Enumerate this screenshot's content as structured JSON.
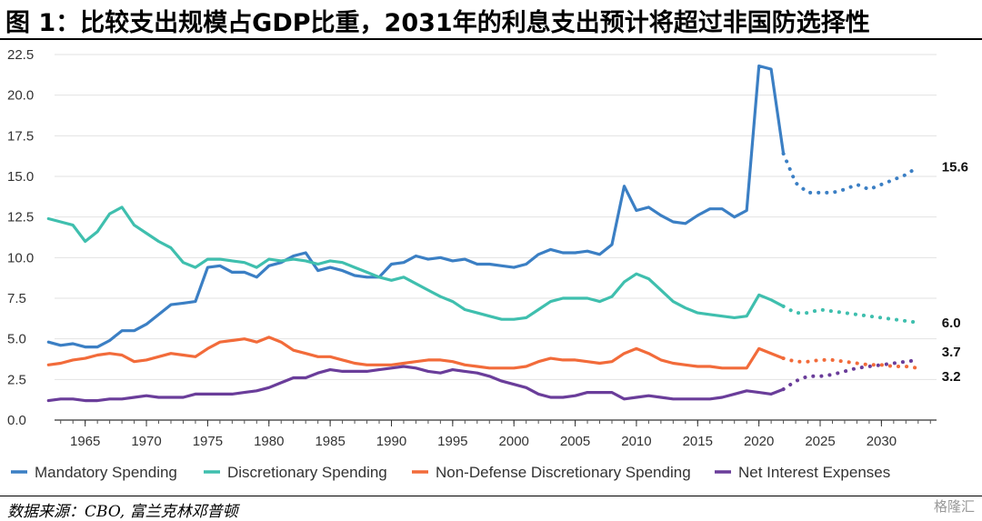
{
  "title": "图 1：比较支出规模占GDP比重，2031年的利息支出预计将超过非国防选择性",
  "source": "数据来源：CBO, 富兰克林邓普顿",
  "watermark": "格隆汇",
  "chart_data": {
    "type": "line",
    "xlim": [
      1962.5,
      2034.5
    ],
    "ylim": [
      0,
      22.5
    ],
    "x_ticks": [
      1965,
      1970,
      1975,
      1980,
      1985,
      1990,
      1995,
      2000,
      2005,
      2010,
      2015,
      2020,
      2025,
      2030
    ],
    "y_ticks": [
      0.0,
      2.5,
      5.0,
      7.5,
      10.0,
      12.5,
      15.0,
      17.5,
      20.0,
      22.5
    ],
    "y_tick_labels": [
      "0.0",
      "2.5",
      "5.0",
      "7.5",
      "10.0",
      "12.5",
      "15.0",
      "17.5",
      "20.0",
      "22.5"
    ],
    "grid": "horizontal",
    "legend_position": "bottom",
    "projection_start": 2022,
    "series": [
      {
        "name": "Mandatory Spending",
        "color": "#3b7fc4",
        "end_label": "15.6",
        "x": [
          1962,
          1963,
          1964,
          1965,
          1966,
          1967,
          1968,
          1969,
          1970,
          1971,
          1972,
          1973,
          1974,
          1975,
          1976,
          1977,
          1978,
          1979,
          1980,
          1981,
          1982,
          1983,
          1984,
          1985,
          1986,
          1987,
          1988,
          1989,
          1990,
          1991,
          1992,
          1993,
          1994,
          1995,
          1996,
          1997,
          1998,
          1999,
          2000,
          2001,
          2002,
          2003,
          2004,
          2005,
          2006,
          2007,
          2008,
          2009,
          2010,
          2011,
          2012,
          2013,
          2014,
          2015,
          2016,
          2017,
          2018,
          2019,
          2020,
          2021,
          2022,
          2023,
          2024,
          2025,
          2026,
          2027,
          2028,
          2029,
          2030,
          2031,
          2032,
          2033
        ],
        "y": [
          4.8,
          4.6,
          4.7,
          4.5,
          4.5,
          4.9,
          5.5,
          5.5,
          5.9,
          6.5,
          7.1,
          7.2,
          7.3,
          9.4,
          9.5,
          9.1,
          9.1,
          8.8,
          9.5,
          9.7,
          10.1,
          10.3,
          9.2,
          9.4,
          9.2,
          8.9,
          8.8,
          8.8,
          9.6,
          9.7,
          10.1,
          9.9,
          10.0,
          9.8,
          9.9,
          9.6,
          9.6,
          9.5,
          9.4,
          9.6,
          10.2,
          10.5,
          10.3,
          10.3,
          10.4,
          10.2,
          10.8,
          14.4,
          12.9,
          13.1,
          12.6,
          12.2,
          12.1,
          12.6,
          13.0,
          13.0,
          12.5,
          12.9,
          21.8,
          21.6,
          16.4,
          14.6,
          14.0,
          14.0,
          14.0,
          14.2,
          14.5,
          14.2,
          14.5,
          14.8,
          15.1,
          15.6
        ],
        "projection_from_index": 60
      },
      {
        "name": "Discretionary Spending",
        "color": "#3fbfae",
        "end_label": "6.0",
        "x": [
          1962,
          1963,
          1964,
          1965,
          1966,
          1967,
          1968,
          1969,
          1970,
          1971,
          1972,
          1973,
          1974,
          1975,
          1976,
          1977,
          1978,
          1979,
          1980,
          1981,
          1982,
          1983,
          1984,
          1985,
          1986,
          1987,
          1988,
          1989,
          1990,
          1991,
          1992,
          1993,
          1994,
          1995,
          1996,
          1997,
          1998,
          1999,
          2000,
          2001,
          2002,
          2003,
          2004,
          2005,
          2006,
          2007,
          2008,
          2009,
          2010,
          2011,
          2012,
          2013,
          2014,
          2015,
          2016,
          2017,
          2018,
          2019,
          2020,
          2021,
          2022,
          2023,
          2024,
          2025,
          2026,
          2027,
          2028,
          2029,
          2030,
          2031,
          2032,
          2033
        ],
        "y": [
          12.4,
          12.2,
          12.0,
          11.0,
          11.6,
          12.7,
          13.1,
          12.0,
          11.5,
          11.0,
          10.6,
          9.7,
          9.4,
          9.9,
          9.9,
          9.8,
          9.7,
          9.4,
          9.9,
          9.8,
          9.9,
          9.8,
          9.6,
          9.8,
          9.7,
          9.4,
          9.1,
          8.8,
          8.6,
          8.8,
          8.4,
          8.0,
          7.6,
          7.3,
          6.8,
          6.6,
          6.4,
          6.2,
          6.2,
          6.3,
          6.8,
          7.3,
          7.5,
          7.5,
          7.5,
          7.3,
          7.6,
          8.5,
          9.0,
          8.7,
          8.0,
          7.3,
          6.9,
          6.6,
          6.5,
          6.4,
          6.3,
          6.4,
          7.7,
          7.4,
          7.0,
          6.6,
          6.6,
          6.8,
          6.7,
          6.6,
          6.5,
          6.4,
          6.3,
          6.2,
          6.1,
          6.0
        ],
        "projection_from_index": 60
      },
      {
        "name": "Non-Defense Discretionary Spending",
        "color": "#f26b3a",
        "end_label": "3.2",
        "x": [
          1962,
          1963,
          1964,
          1965,
          1966,
          1967,
          1968,
          1969,
          1970,
          1971,
          1972,
          1973,
          1974,
          1975,
          1976,
          1977,
          1978,
          1979,
          1980,
          1981,
          1982,
          1983,
          1984,
          1985,
          1986,
          1987,
          1988,
          1989,
          1990,
          1991,
          1992,
          1993,
          1994,
          1995,
          1996,
          1997,
          1998,
          1999,
          2000,
          2001,
          2002,
          2003,
          2004,
          2005,
          2006,
          2007,
          2008,
          2009,
          2010,
          2011,
          2012,
          2013,
          2014,
          2015,
          2016,
          2017,
          2018,
          2019,
          2020,
          2021,
          2022,
          2023,
          2024,
          2025,
          2026,
          2027,
          2028,
          2029,
          2030,
          2031,
          2032,
          2033
        ],
        "y": [
          3.4,
          3.5,
          3.7,
          3.8,
          4.0,
          4.1,
          4.0,
          3.6,
          3.7,
          3.9,
          4.1,
          4.0,
          3.9,
          4.4,
          4.8,
          4.9,
          5.0,
          4.8,
          5.1,
          4.8,
          4.3,
          4.1,
          3.9,
          3.9,
          3.7,
          3.5,
          3.4,
          3.4,
          3.4,
          3.5,
          3.6,
          3.7,
          3.7,
          3.6,
          3.4,
          3.3,
          3.2,
          3.2,
          3.2,
          3.3,
          3.6,
          3.8,
          3.7,
          3.7,
          3.6,
          3.5,
          3.6,
          4.1,
          4.4,
          4.1,
          3.7,
          3.5,
          3.4,
          3.3,
          3.3,
          3.2,
          3.2,
          3.2,
          4.4,
          4.1,
          3.8,
          3.6,
          3.6,
          3.7,
          3.7,
          3.6,
          3.5,
          3.4,
          3.4,
          3.3,
          3.3,
          3.2
        ],
        "projection_from_index": 60
      },
      {
        "name": "Net Interest Expenses",
        "color": "#6a3d9a",
        "end_label": "3.7",
        "x": [
          1962,
          1963,
          1964,
          1965,
          1966,
          1967,
          1968,
          1969,
          1970,
          1971,
          1972,
          1973,
          1974,
          1975,
          1976,
          1977,
          1978,
          1979,
          1980,
          1981,
          1982,
          1983,
          1984,
          1985,
          1986,
          1987,
          1988,
          1989,
          1990,
          1991,
          1992,
          1993,
          1994,
          1995,
          1996,
          1997,
          1998,
          1999,
          2000,
          2001,
          2002,
          2003,
          2004,
          2005,
          2006,
          2007,
          2008,
          2009,
          2010,
          2011,
          2012,
          2013,
          2014,
          2015,
          2016,
          2017,
          2018,
          2019,
          2020,
          2021,
          2022,
          2023,
          2024,
          2025,
          2026,
          2027,
          2028,
          2029,
          2030,
          2031,
          2032,
          2033
        ],
        "y": [
          1.2,
          1.3,
          1.3,
          1.2,
          1.2,
          1.3,
          1.3,
          1.4,
          1.5,
          1.4,
          1.4,
          1.4,
          1.6,
          1.6,
          1.6,
          1.6,
          1.7,
          1.8,
          2.0,
          2.3,
          2.6,
          2.6,
          2.9,
          3.1,
          3.0,
          3.0,
          3.0,
          3.1,
          3.2,
          3.3,
          3.2,
          3.0,
          2.9,
          3.1,
          3.0,
          2.9,
          2.7,
          2.4,
          2.2,
          2.0,
          1.6,
          1.4,
          1.4,
          1.5,
          1.7,
          1.7,
          1.7,
          1.3,
          1.4,
          1.5,
          1.4,
          1.3,
          1.3,
          1.3,
          1.3,
          1.4,
          1.6,
          1.8,
          1.7,
          1.6,
          1.9,
          2.4,
          2.7,
          2.7,
          2.8,
          3.0,
          3.2,
          3.3,
          3.4,
          3.5,
          3.6,
          3.7
        ],
        "projection_from_index": 60
      }
    ]
  }
}
